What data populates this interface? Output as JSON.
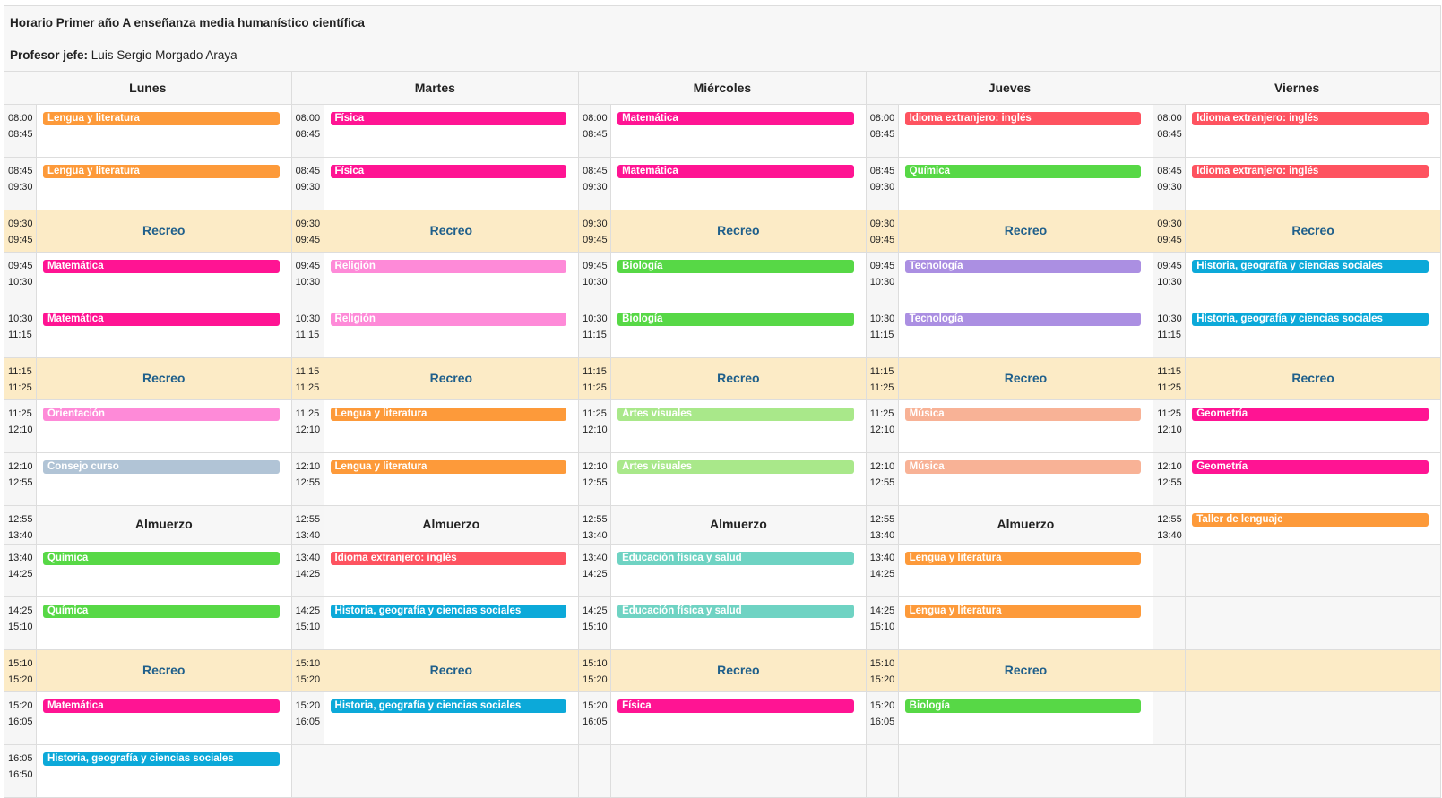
{
  "title": "Horario Primer año A enseñanza media humanístico científica",
  "teacher": {
    "label": "Profesor jefe:",
    "name": "Luis Sergio Morgado Araya"
  },
  "days": [
    "Lunes",
    "Martes",
    "Miércoles",
    "Jueves",
    "Viernes"
  ],
  "recess_label": "Recreo",
  "lunch_label": "Almuerzo",
  "subject_colors": {
    "Lengua y literatura": "#fd9a3a",
    "Física": "#ff1493",
    "Matemática": "#ff1493",
    "Idioma extranjero: inglés": "#fe5360",
    "Química": "#57d846",
    "Religión": "#fe8ad8",
    "Biología": "#57d846",
    "Tecnología": "#ab8fe2",
    "Historia, geografía y ciencias sociales": "#0ca9d9",
    "Orientación": "#fe8ad8",
    "Artes visuales": "#a9e88a",
    "Música": "#f8b296",
    "Geometría": "#ff1493",
    "Consejo curso": "#b1c4d6",
    "Taller de lenguaje": "#fd9a3a",
    "Educación física y salud": "#6fd3c3"
  },
  "rows": [
    {
      "type": "class",
      "start": "08:00",
      "end": "08:45",
      "cells": [
        "Lengua y literatura",
        "Física",
        "Matemática",
        "Idioma extranjero: inglés",
        "Idioma extranjero: inglés"
      ]
    },
    {
      "type": "class",
      "start": "08:45",
      "end": "09:30",
      "cells": [
        "Lengua y literatura",
        "Física",
        "Matemática",
        "Química",
        "Idioma extranjero: inglés"
      ]
    },
    {
      "type": "recess",
      "start": "09:30",
      "end": "09:45",
      "cells": [
        "Recreo",
        "Recreo",
        "Recreo",
        "Recreo",
        "Recreo"
      ]
    },
    {
      "type": "class",
      "start": "09:45",
      "end": "10:30",
      "cells": [
        "Matemática",
        "Religión",
        "Biología",
        "Tecnología",
        "Historia, geografía y ciencias sociales"
      ]
    },
    {
      "type": "class",
      "start": "10:30",
      "end": "11:15",
      "cells": [
        "Matemática",
        "Religión",
        "Biología",
        "Tecnología",
        "Historia, geografía y ciencias sociales"
      ]
    },
    {
      "type": "recess",
      "start": "11:15",
      "end": "11:25",
      "cells": [
        "Recreo",
        "Recreo",
        "Recreo",
        "Recreo",
        "Recreo"
      ]
    },
    {
      "type": "class",
      "start": "11:25",
      "end": "12:10",
      "cells": [
        "Orientación",
        "Lengua y literatura",
        "Artes visuales",
        "Música",
        "Geometría"
      ]
    },
    {
      "type": "class",
      "start": "12:10",
      "end": "12:55",
      "cells": [
        "Consejo curso",
        "Lengua y literatura",
        "Artes visuales",
        "Música",
        "Geometría"
      ]
    },
    {
      "type": "lunch",
      "start": "12:55",
      "end": "13:40",
      "cells": [
        "Almuerzo",
        "Almuerzo",
        "Almuerzo",
        "Almuerzo",
        "Taller de lenguaje"
      ]
    },
    {
      "type": "class",
      "start": "13:40",
      "end": "14:25",
      "cells": [
        "Química",
        "Idioma extranjero: inglés",
        "Educación física y salud",
        "Lengua y literatura",
        ""
      ]
    },
    {
      "type": "class",
      "start": "14:25",
      "end": "15:10",
      "cells": [
        "Química",
        "Historia, geografía y ciencias sociales",
        "Educación física y salud",
        "Lengua y literatura",
        ""
      ]
    },
    {
      "type": "recess",
      "start": "15:10",
      "end": "15:20",
      "cells": [
        "Recreo",
        "Recreo",
        "Recreo",
        "Recreo",
        ""
      ]
    },
    {
      "type": "class",
      "start": "15:20",
      "end": "16:05",
      "cells": [
        "Matemática",
        "Historia, geografía y ciencias sociales",
        "Física",
        "Biología",
        ""
      ]
    },
    {
      "type": "class",
      "start": "16:05",
      "end": "16:50",
      "cells": [
        "Historia, geografía y ciencias sociales",
        "",
        "",
        "",
        ""
      ]
    }
  ]
}
